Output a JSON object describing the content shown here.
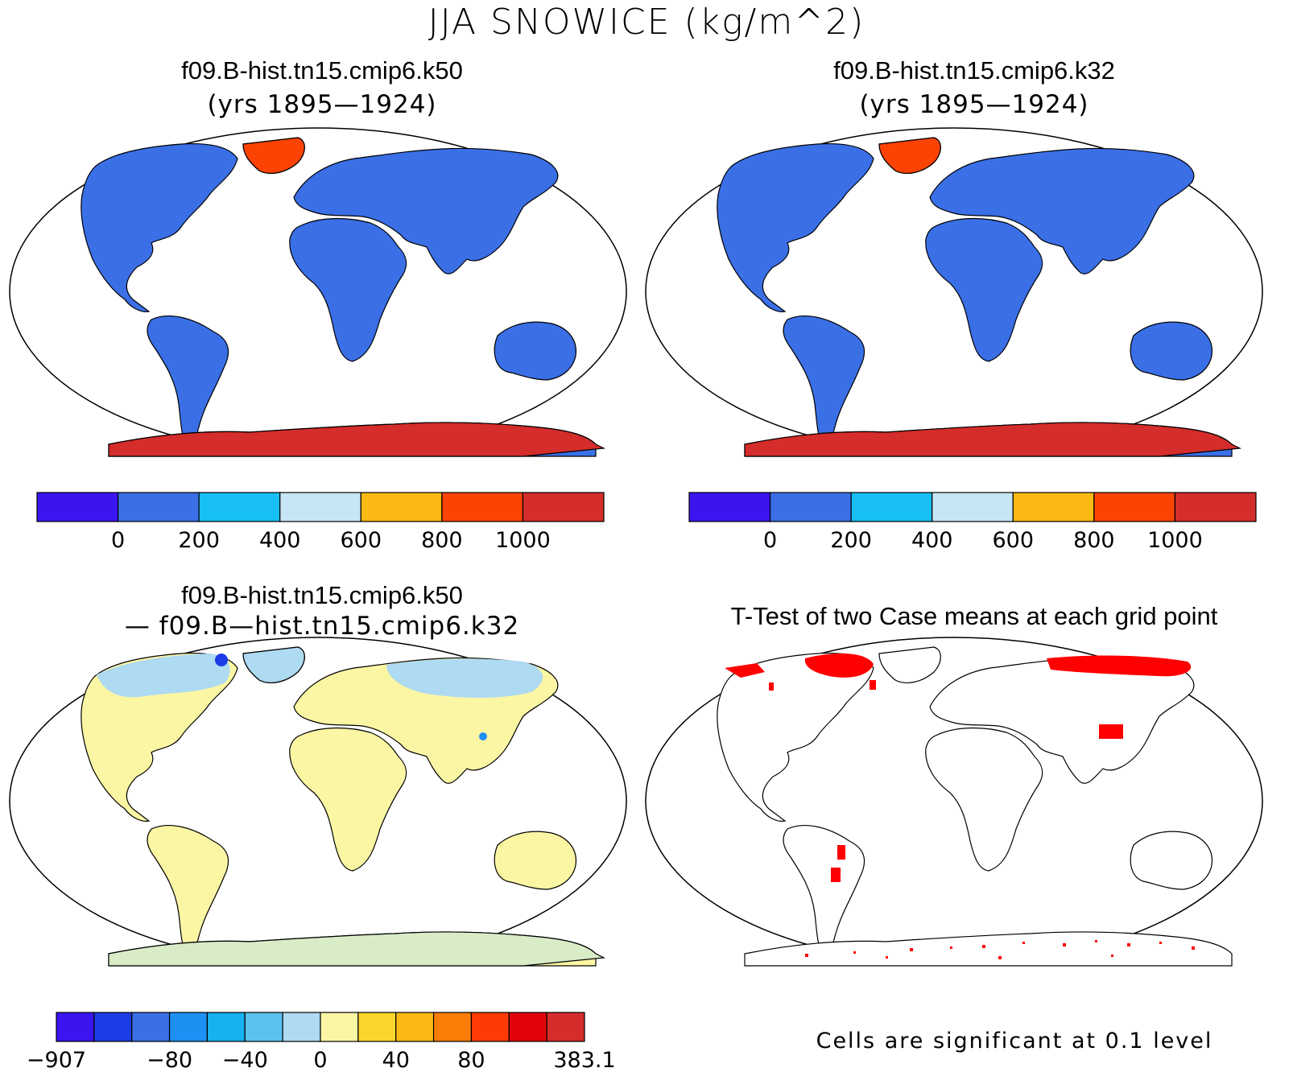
{
  "figure": {
    "title": "JJA SNOWICE (kg/m^2)"
  },
  "panels": [
    {
      "id": "top-left",
      "title": "f09.B-hist.tn15.cmip6.k50",
      "subtitle": "(yrs 1895—1924)",
      "type": "map"
    },
    {
      "id": "top-right",
      "title": "f09.B-hist.tn15.cmip6.k32",
      "subtitle": "(yrs 1895—1924)",
      "type": "map"
    },
    {
      "id": "bottom-left",
      "title": "f09.B-hist.tn15.cmip6.k50",
      "subtitle": "— f09.B—hist.tn15.cmip6.k32",
      "type": "map"
    },
    {
      "id": "bottom-right",
      "title": "T-Test of two Case means at each grid point",
      "note": "Cells are significant at 0.1 level",
      "type": "map"
    }
  ],
  "colorbars": {
    "mean": {
      "colors": [
        "#3b14f0",
        "#3a6fe6",
        "#17bff5",
        "#c7e6f5",
        "#fbb913",
        "#fc4303",
        "#d42d2b"
      ],
      "labels": [
        "0",
        "200",
        "400",
        "600",
        "800",
        "1000"
      ]
    },
    "diff": {
      "colors": [
        "#3b14f0",
        "#1c3ce8",
        "#3a6fe6",
        "#1e90f4",
        "#17b0f0",
        "#5bc2f0",
        "#aedaf2",
        "#fbf6a4",
        "#fcd72b",
        "#fbb913",
        "#fa7d08",
        "#fc3b06",
        "#e0040a",
        "#d42d2b"
      ],
      "labels": [
        "−907",
        "−80",
        "−40",
        "0",
        "40",
        "80",
        "383.1"
      ]
    }
  },
  "colors": {
    "land_mean": "#3a6fe6",
    "antarctica_mean": "#d42d2b",
    "greenland_k50": "#fc4303",
    "greenland_k32": "#fc4303",
    "land_diff": "#fbf6a4",
    "polar_diff": "#aedaf2",
    "significant": "#ff0000"
  }
}
